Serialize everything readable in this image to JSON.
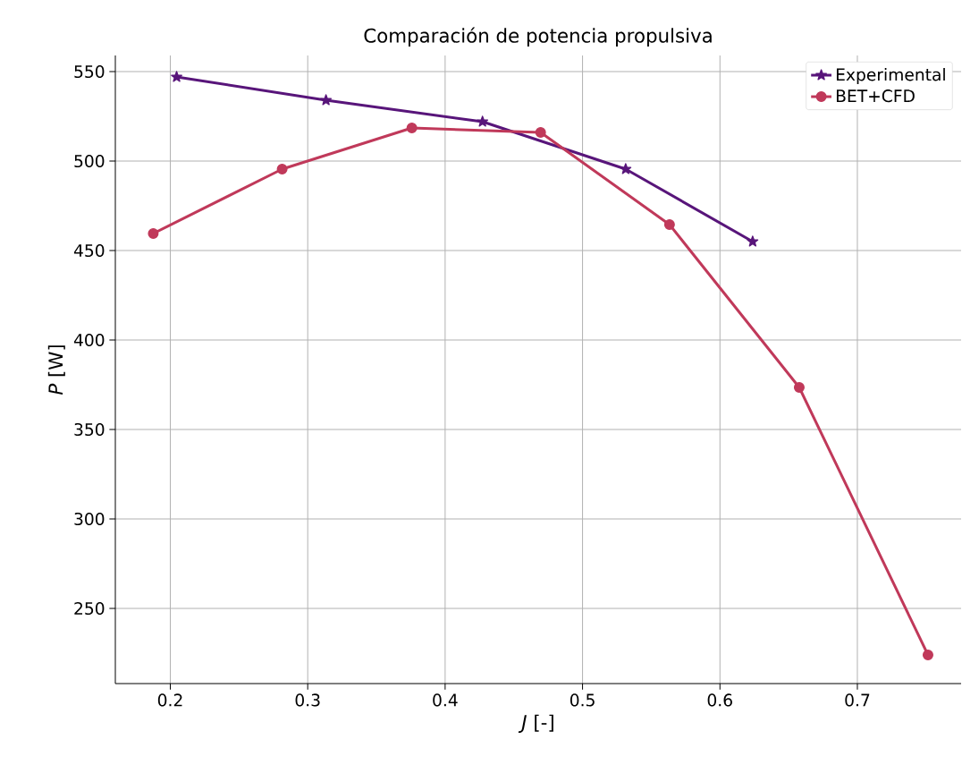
{
  "chart_data": {
    "type": "line",
    "title": "Comparación de potencia propulsiva",
    "xlabel": "*J* [-]",
    "ylabel": "*P* [W]",
    "series": [
      {
        "name": "Experimental",
        "color": "#58157a",
        "marker": "star",
        "x": [
          0.2046,
          0.3133,
          0.4272,
          0.5314,
          0.6238
        ],
        "values": [
          547,
          534,
          522,
          495.5,
          455
        ]
      },
      {
        "name": "BET+CFD",
        "color": "#c0395a",
        "marker": "circle",
        "x": [
          0.1876,
          0.2814,
          0.3758,
          0.4695,
          0.5633,
          0.6577,
          0.7514
        ],
        "values": [
          459.5,
          495.5,
          518.5,
          516,
          464.5,
          373.5,
          224
        ]
      }
    ],
    "xlim": [
      0.16,
      0.7755
    ],
    "ylim": [
      208,
      559
    ],
    "xticks": [
      0.2,
      0.3,
      0.4,
      0.5,
      0.6,
      0.7
    ],
    "yticks": [
      250,
      300,
      350,
      400,
      450,
      500,
      550
    ],
    "grid": true,
    "legend": "top right"
  }
}
